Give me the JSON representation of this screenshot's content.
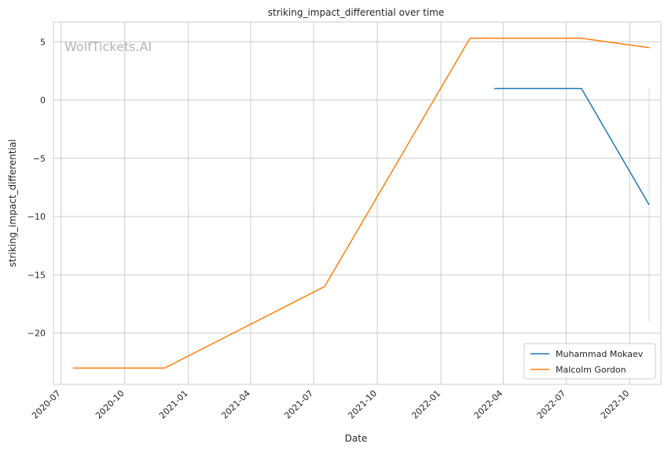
{
  "chart_data": {
    "type": "line",
    "title": "striking_impact_differential over time",
    "xlabel": "Date",
    "ylabel": "striking_impact_differential",
    "watermark": "WolfTickets.AI",
    "xlim": [
      "2020-06-20",
      "2022-11-15"
    ],
    "ylim": [
      -24.4,
      6.7
    ],
    "x_ticks": [
      "2020-07",
      "2020-10",
      "2021-01",
      "2021-04",
      "2021-07",
      "2021-10",
      "2022-01",
      "2022-04",
      "2022-07",
      "2022-10"
    ],
    "y_ticks": [
      5,
      0,
      -5,
      -10,
      -15,
      -20
    ],
    "y_tick_labels": [
      "5",
      "0",
      "−5",
      "−10",
      "−15",
      "−20"
    ],
    "grid": true,
    "legend_position": "bottom-right",
    "series": [
      {
        "name": "Muhammad Mokaev",
        "color": "#1f77b4",
        "x": [
          "2022-03-19",
          "2022-07-23",
          "2022-10-29"
        ],
        "y": [
          1.0,
          1.0,
          -9.0
        ],
        "band": {
          "x": "2022-10-29",
          "low": -19.0,
          "high": 1.0
        }
      },
      {
        "name": "Malcolm Gordon",
        "color": "#ff7f0e",
        "x": [
          "2020-07-18",
          "2020-11-28",
          "2021-07-17",
          "2022-02-12",
          "2022-07-23",
          "2022-10-29"
        ],
        "y": [
          -23.0,
          -23.0,
          -16.0,
          5.3,
          5.3,
          4.5
        ]
      }
    ]
  }
}
